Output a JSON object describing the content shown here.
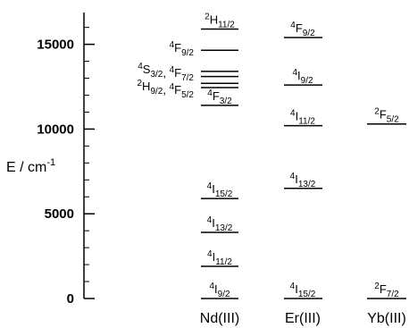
{
  "chart_data": {
    "type": "energy-level diagram",
    "ylabel": "E / cm",
    "ylabel_superscript": "-1",
    "ylim": [
      0,
      16900
    ],
    "y_ticks": [
      0,
      5000,
      10000,
      15000
    ],
    "y_tick_labels": [
      "0",
      "5000",
      "10000",
      "15000"
    ],
    "ions": [
      {
        "name": "Nd(III)",
        "levels": [
          {
            "label": "4I9/2",
            "energy": 0
          },
          {
            "label": "4I11/2",
            "energy": 1900
          },
          {
            "label": "4I13/2",
            "energy": 3900
          },
          {
            "label": "4I15/2",
            "energy": 5900
          },
          {
            "label": "4F3/2",
            "energy": 11400
          },
          {
            "label": "2H9/2, 4F5/2",
            "energy": 12450
          },
          {
            "label": "4S3/2, 4F7/2",
            "energy": 13400
          },
          {
            "label": "4F9/2",
            "energy": 14650
          },
          {
            "label": "2H11/2",
            "energy": 15900
          }
        ],
        "extra_lines": [
          12700,
          13100
        ]
      },
      {
        "name": "Er(III)",
        "levels": [
          {
            "label": "4I15/2",
            "energy": 0
          },
          {
            "label": "4I13/2",
            "energy": 6500
          },
          {
            "label": "4I11/2",
            "energy": 10200
          },
          {
            "label": "4I9/2",
            "energy": 12600
          },
          {
            "label": "4F9/2",
            "energy": 15400
          }
        ],
        "extra_lines": []
      },
      {
        "name": "Yb(III)",
        "levels": [
          {
            "label": "2F7/2",
            "energy": 0
          },
          {
            "label": "2F5/2",
            "energy": 10300
          }
        ],
        "extra_lines": []
      }
    ]
  }
}
